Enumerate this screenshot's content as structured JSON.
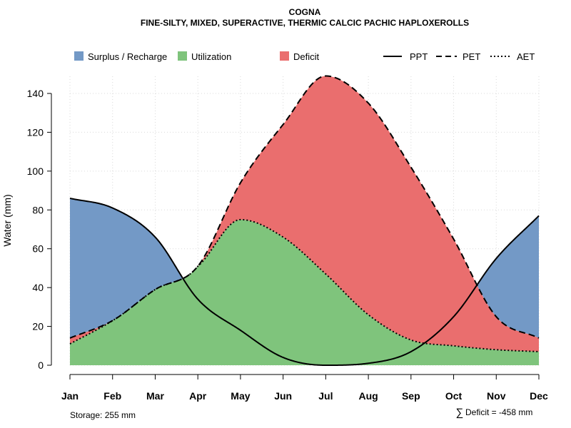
{
  "chart_data": {
    "type": "area",
    "title": "COGNA",
    "subtitle": "FINE-SILTY, MIXED, SUPERACTIVE, THERMIC CALCIC PACHIC HAPLOXEROLLS",
    "ylabel": "Water (mm)",
    "xlabel": "",
    "ylim": [
      0,
      150
    ],
    "yticks": [
      0,
      20,
      40,
      60,
      80,
      100,
      120,
      140
    ],
    "categories": [
      "Jan",
      "Feb",
      "Mar",
      "Apr",
      "May",
      "Jun",
      "Jul",
      "Aug",
      "Sep",
      "Oct",
      "Nov",
      "Dec"
    ],
    "series": [
      {
        "name": "PPT",
        "style": "solid",
        "values": [
          86,
          81,
          66,
          34,
          18,
          4,
          0,
          1,
          7,
          25,
          55,
          77
        ]
      },
      {
        "name": "PET",
        "style": "dashed",
        "values": [
          14,
          23,
          39,
          51,
          94,
          124,
          149,
          135,
          102,
          65,
          25,
          14
        ]
      },
      {
        "name": "AET",
        "style": "dotted",
        "values": [
          11,
          23,
          39,
          51,
          75,
          66,
          47,
          26,
          13,
          10,
          8,
          7
        ]
      }
    ],
    "fills": [
      {
        "name": "Surplus / Recharge",
        "color": "#7399c6"
      },
      {
        "name": "Utilization",
        "color": "#7fc47c"
      },
      {
        "name": "Deficit",
        "color": "#ea6e6e"
      }
    ],
    "legend": [
      "Surplus / Recharge",
      "Utilization",
      "Deficit",
      "PPT",
      "PET",
      "AET"
    ],
    "grid": true,
    "legend_position": "top"
  },
  "footer": {
    "storage": "Storage: 255 mm",
    "deficit_symbol": "∑",
    "deficit": "Deficit = -458 mm"
  }
}
